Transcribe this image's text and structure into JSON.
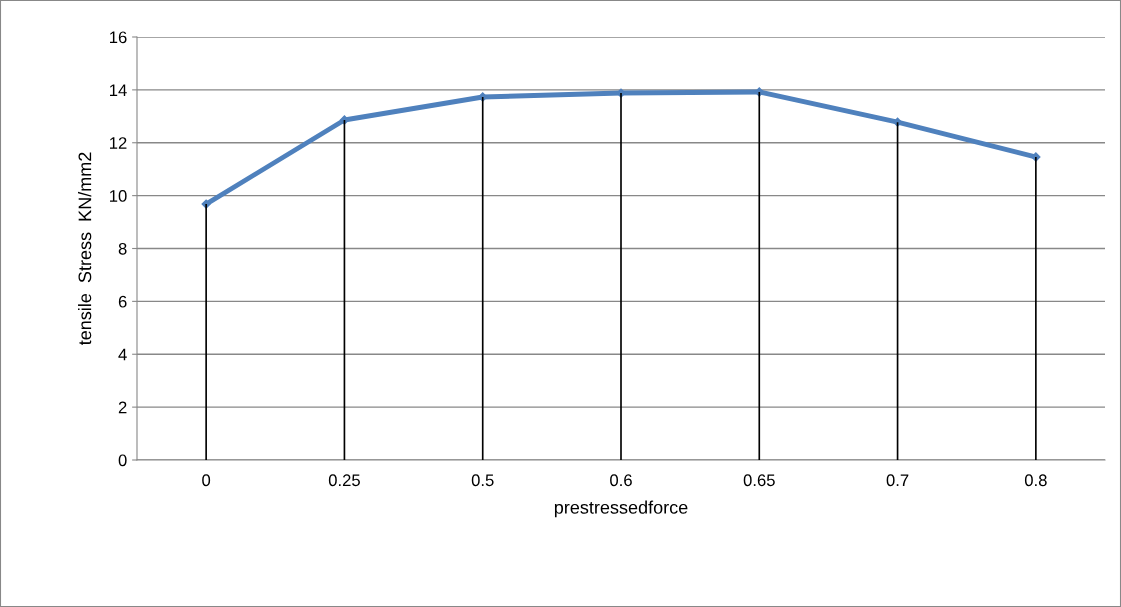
{
  "chart_data": {
    "type": "line",
    "xlabel": "prestressedforce",
    "ylabel": "tensile  Stress  KN/mm2",
    "categories": [
      "0",
      "0.25",
      "0.5",
      "0.6",
      "0.65",
      "0.7",
      "0.8"
    ],
    "series": [
      {
        "color": "#4f81bd",
        "marker": "diamond",
        "line_style": "solid",
        "values": [
          9.68,
          12.86,
          13.73,
          13.88,
          13.92,
          12.78,
          11.46
        ]
      },
      {
        "type": "bar",
        "color": "#000000",
        "values": [
          9.68,
          12.86,
          13.73,
          13.88,
          13.92,
          12.78,
          11.46
        ]
      }
    ],
    "ylim": [
      0,
      16
    ],
    "yticks": [
      0,
      2,
      4,
      6,
      8,
      10,
      12,
      14,
      16
    ],
    "grid": "y",
    "legend": false
  }
}
